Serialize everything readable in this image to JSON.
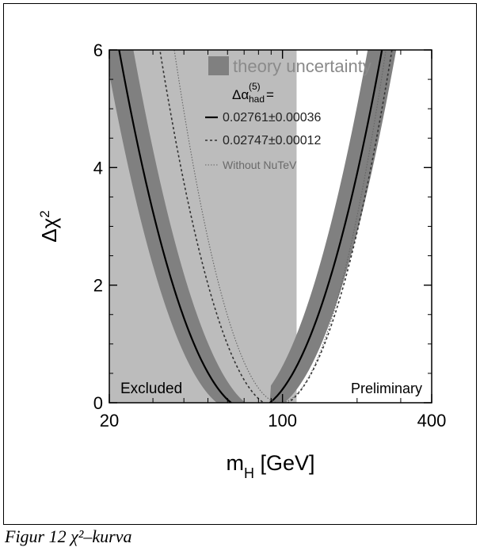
{
  "caption": "Figur 12 χ²–kurva",
  "chart_data": {
    "type": "line",
    "title": "",
    "xlabel": "m_H [GeV]",
    "ylabel": "Δχ²",
    "xscale": "log",
    "xlim": [
      20,
      400
    ],
    "ylim": [
      0,
      6
    ],
    "xticks": [
      20,
      100,
      400
    ],
    "xtick_labels": [
      "20",
      "100",
      "400"
    ],
    "yticks": [
      0,
      2,
      4,
      6
    ],
    "ytick_labels": [
      "0",
      "2",
      "4",
      "6"
    ],
    "minima": {
      "solid_x": 89,
      "dashed_x": 84,
      "nutev_x": 96
    },
    "excluded_region": {
      "x": [
        20,
        114
      ],
      "label": "Excluded",
      "color": "#bcbcbc"
    },
    "band_color": "#808080",
    "preliminary_label": "Preliminary",
    "legend": {
      "position": "top-right",
      "band_label": "theory uncertainty",
      "header": "Δα",
      "header_sup": "(5)",
      "header_sub": "had",
      "header_suffix": " =",
      "entries": [
        {
          "label": "0.02761±0.00036",
          "style": "solid"
        },
        {
          "label": "0.02747±0.00012",
          "style": "dashed"
        },
        {
          "label": "Without NuTeV",
          "style": "dotted"
        }
      ]
    },
    "series": [
      {
        "style": "solid",
        "x": [
          20,
          30,
          40,
          50,
          60,
          70,
          80,
          89,
          100,
          120,
          140,
          160,
          180,
          200,
          220,
          252
        ],
        "values": [
          6.95,
          4.39,
          2.99,
          1.99,
          1.24,
          0.65,
          0.22,
          0.0,
          0.13,
          0.86,
          1.73,
          2.59,
          3.43,
          4.2,
          4.93,
          6.0
        ]
      },
      {
        "style": "dashed",
        "x": [
          32,
          40,
          50,
          60,
          70,
          84,
          100,
          120,
          150,
          200,
          252
        ],
        "values": [
          6.0,
          4.11,
          2.68,
          1.69,
          0.98,
          0.02,
          0.22,
          0.8,
          1.9,
          3.51,
          5.0
        ]
      },
      {
        "style": "dotted",
        "x": [
          35,
          50,
          70,
          96,
          120,
          160,
          200,
          240
        ],
        "values": [
          6.55,
          3.55,
          1.49,
          0.0,
          0.7,
          2.1,
          3.5,
          5.0
        ]
      }
    ]
  }
}
